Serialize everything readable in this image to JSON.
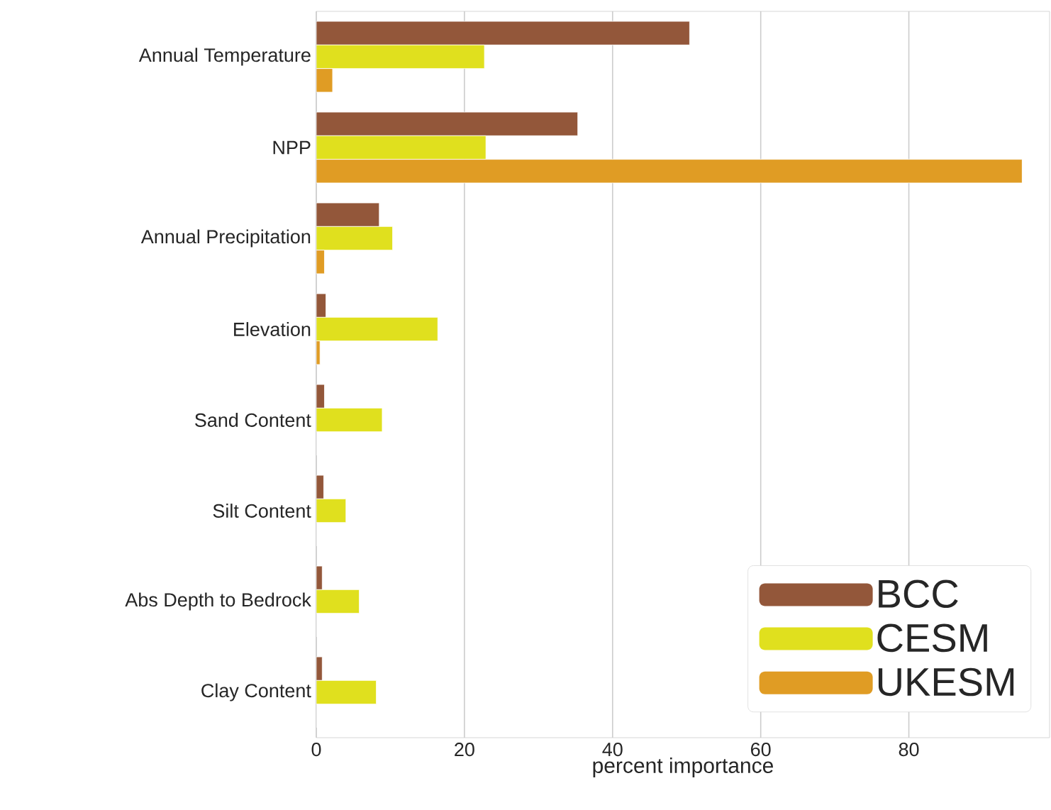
{
  "chart_data": {
    "type": "bar",
    "orientation": "horizontal",
    "xlabel": "percent importance",
    "categories": [
      "Annual Temperature",
      "NPP",
      "Annual Precipitation",
      "Elevation",
      "Sand Content",
      "Silt Content",
      "Abs Depth to Bedrock",
      "Clay Content"
    ],
    "series": [
      {
        "name": "BCC",
        "color": "#93573a",
        "values": [
          50.4,
          35.3,
          8.5,
          1.3,
          1.1,
          1.0,
          0.8,
          0.8
        ]
      },
      {
        "name": "CESM",
        "color": "#e0e01e",
        "values": [
          22.7,
          22.9,
          10.3,
          16.4,
          8.9,
          4.0,
          5.8,
          8.1
        ]
      },
      {
        "name": "UKESM",
        "color": "#e09c24",
        "values": [
          2.2,
          95.3,
          1.1,
          0.5,
          0,
          0,
          0,
          0
        ]
      }
    ],
    "xlim": [
      0,
      99
    ],
    "xticks": [
      0,
      20,
      40,
      60,
      80
    ],
    "grid": "x",
    "legend": "bottom right"
  }
}
